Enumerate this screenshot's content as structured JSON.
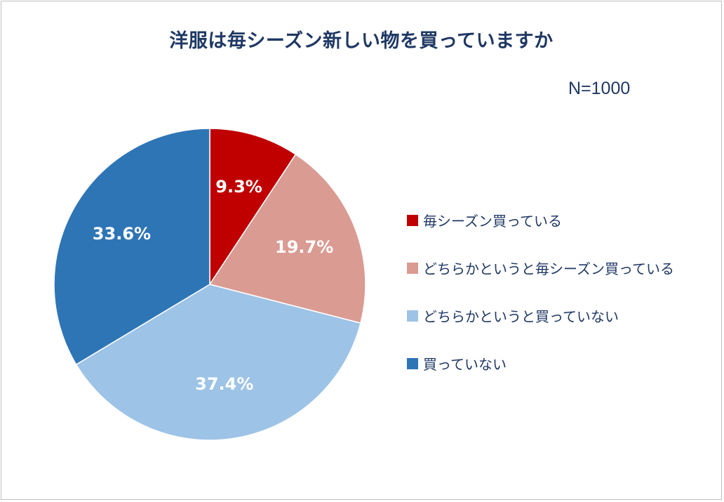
{
  "chart_data": {
    "type": "pie",
    "title": "洋服は毎シーズン新しい物を買っていますか",
    "sample_size": "N=1000",
    "legend_position": "right",
    "slices": [
      {
        "label": "毎シーズン買っている",
        "value": 9.3,
        "display": "9.3%",
        "color": "#c00000"
      },
      {
        "label": "どちらかというと毎シーズン買っている",
        "value": 19.7,
        "display": "19.7%",
        "color": "#da9b92"
      },
      {
        "label": "どちらかというと買っていない",
        "value": 37.4,
        "display": "37.4%",
        "color": "#9dc3e6"
      },
      {
        "label": "買っていない",
        "value": 33.6,
        "display": "33.6%",
        "color": "#2e75b6"
      }
    ]
  }
}
